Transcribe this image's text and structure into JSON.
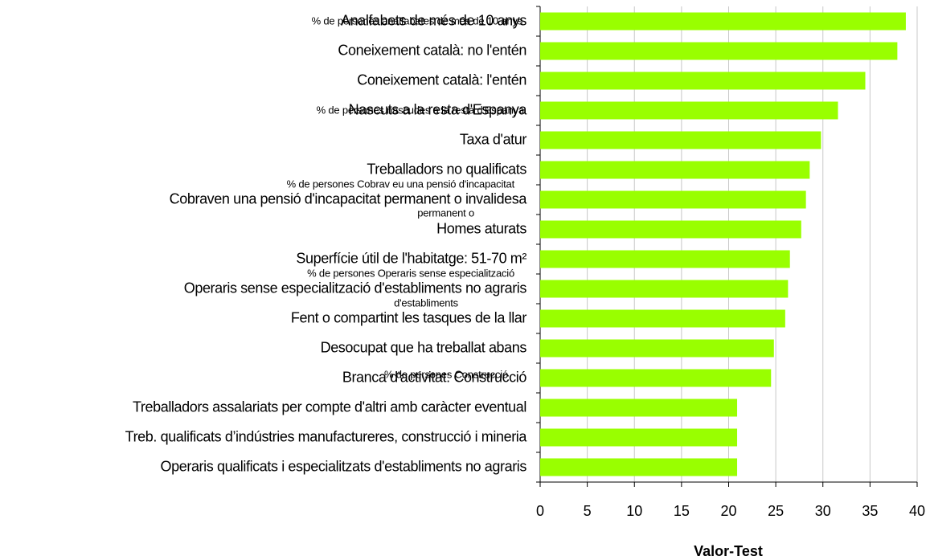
{
  "chart_data": {
    "type": "barh",
    "categories": [
      "Analfabets de més de 10 anys",
      "Coneixement català: no l'entén",
      "Coneixement català: l'entén",
      "Nascuts a la resta d'Espanya",
      "Taxa d'atur",
      "Treballadors no qualificats",
      "Cobraven una pensió d'incapacitat permanent o invalidesa",
      "Homes aturats",
      "Superfície útil de l'habitatge: 51-70 m²",
      "Operaris sense especialització d'establiments no agraris",
      "Fent o compartint les tasques de la llar",
      "Desocupat que ha treballat abans",
      "Branca d'activitat: Construcció",
      "Treballadors assalariats per compte d'altri amb caràcter eventual",
      "Treb. qualificats d’indústries manufactureres, construcció i mineria",
      "Operaris qualificats i especialitzats d'establiments no agraris"
    ],
    "values": [
      38.8,
      37.9,
      34.5,
      31.6,
      29.8,
      28.6,
      28.2,
      27.7,
      26.5,
      26.3,
      26.0,
      24.8,
      24.5,
      20.9,
      20.9,
      20.9
    ],
    "color": "#99ff00",
    "xlim": [
      0,
      40
    ],
    "xticks": [
      0,
      5,
      10,
      15,
      20,
      25,
      30,
      35,
      40
    ],
    "xlabel": "Valor-Test",
    "grid": true,
    "annotations": [
      "% de persones analfabetes de més de 10 anys",
      "% de persones nascudes a la resta d'Espanya",
      "% de persones  Cobrav eu una pensió d'incapacitat",
      "permanent o",
      "% de persones  Operaris sense especialització",
      "d'establiments",
      "% de persones Construcció"
    ]
  }
}
